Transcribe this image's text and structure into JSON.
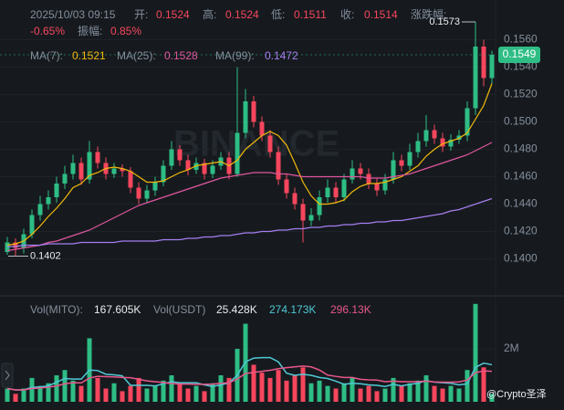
{
  "header": {
    "datetime": "2025/10/03 09:15",
    "open_label": "开:",
    "open": "0.1524",
    "high_label": "高:",
    "high": "0.1524",
    "low_label": "低:",
    "low": "0.1511",
    "close_label": "收:",
    "close": "0.1514",
    "change_label": "涨跌幅:",
    "change": "-0.65%",
    "amplitude_label": "振幅:",
    "amplitude": "0.85%"
  },
  "watermark": "BINANCE",
  "credit": "@Crypto圣泽",
  "chart_data": [
    {
      "type": "candlestick",
      "up_color": "#2ebd85",
      "down_color": "#f6465d",
      "grid": true,
      "ylim": [
        0.1375,
        0.1589
      ],
      "yticks": [
        {
          "value": 0.14,
          "label": "0.1400"
        },
        {
          "value": 0.142,
          "label": "0.1420"
        },
        {
          "value": 0.144,
          "label": "0.1440"
        },
        {
          "value": 0.146,
          "label": "0.1460"
        },
        {
          "value": 0.148,
          "label": "0.1480"
        },
        {
          "value": 0.15,
          "label": "0.1500"
        },
        {
          "value": 0.152,
          "label": "0.1520"
        },
        {
          "value": 0.154,
          "label": "0.1540"
        },
        {
          "value": 0.156,
          "label": "0.1560"
        }
      ],
      "open": [
        0.1405,
        0.1412,
        0.1408,
        0.1418,
        0.1432,
        0.144,
        0.1445,
        0.1455,
        0.1462,
        0.147,
        0.1458,
        0.1478,
        0.147,
        0.1462,
        0.1466,
        0.1464,
        0.1452,
        0.1444,
        0.145,
        0.1456,
        0.1468,
        0.148,
        0.1472,
        0.1465,
        0.147,
        0.1462,
        0.1468,
        0.1474,
        0.1462,
        0.1492,
        0.1515,
        0.15,
        0.149,
        0.1478,
        0.1458,
        0.1448,
        0.144,
        0.1428,
        0.1432,
        0.1445,
        0.1452,
        0.1445,
        0.1458,
        0.1466,
        0.1462,
        0.1455,
        0.145,
        0.1458,
        0.1472,
        0.1468,
        0.1478,
        0.1486,
        0.1494,
        0.1488,
        0.1482,
        0.1487,
        0.149,
        0.151,
        0.1555,
        0.1532
      ],
      "high": [
        0.1416,
        0.1415,
        0.1422,
        0.1436,
        0.1446,
        0.145,
        0.146,
        0.1468,
        0.1476,
        0.1474,
        0.1486,
        0.1482,
        0.1474,
        0.147,
        0.1469,
        0.1467,
        0.1456,
        0.1454,
        0.146,
        0.1472,
        0.1486,
        0.1483,
        0.1476,
        0.1474,
        0.1473,
        0.1472,
        0.1478,
        0.1478,
        0.154,
        0.1524,
        0.1519,
        0.1504,
        0.1494,
        0.1482,
        0.1462,
        0.1452,
        0.1444,
        0.1437,
        0.145,
        0.1458,
        0.1456,
        0.1462,
        0.1472,
        0.147,
        0.1466,
        0.1459,
        0.1462,
        0.1478,
        0.1476,
        0.1484,
        0.1492,
        0.1505,
        0.1498,
        0.1492,
        0.1491,
        0.1494,
        0.1515,
        0.1573,
        0.156,
        0.1552
      ],
      "low": [
        0.1403,
        0.1402,
        0.1404,
        0.1415,
        0.1428,
        0.1436,
        0.1441,
        0.1451,
        0.1458,
        0.1454,
        0.1455,
        0.1466,
        0.1458,
        0.1459,
        0.146,
        0.1448,
        0.144,
        0.1441,
        0.1446,
        0.1453,
        0.1465,
        0.1468,
        0.1461,
        0.1462,
        0.1458,
        0.1459,
        0.1465,
        0.1458,
        0.146,
        0.1488,
        0.1496,
        0.1486,
        0.1474,
        0.1454,
        0.1444,
        0.1436,
        0.1412,
        0.1424,
        0.1428,
        0.1441,
        0.1441,
        0.1442,
        0.1455,
        0.1458,
        0.1451,
        0.1446,
        0.1447,
        0.1455,
        0.1464,
        0.1465,
        0.1474,
        0.1482,
        0.1484,
        0.1478,
        0.1479,
        0.1484,
        0.1486,
        0.1505,
        0.1526,
        0.1528
      ],
      "close": [
        0.1412,
        0.1408,
        0.1418,
        0.1432,
        0.144,
        0.1445,
        0.1455,
        0.1462,
        0.147,
        0.1458,
        0.1478,
        0.147,
        0.1462,
        0.1466,
        0.1464,
        0.1452,
        0.1444,
        0.145,
        0.1456,
        0.1468,
        0.148,
        0.1472,
        0.1465,
        0.147,
        0.1462,
        0.1468,
        0.1474,
        0.1462,
        0.1492,
        0.1515,
        0.15,
        0.149,
        0.1478,
        0.1458,
        0.1448,
        0.144,
        0.1428,
        0.1432,
        0.1445,
        0.1452,
        0.1445,
        0.1458,
        0.1466,
        0.1462,
        0.1455,
        0.145,
        0.1458,
        0.1472,
        0.1468,
        0.1478,
        0.1486,
        0.1494,
        0.1488,
        0.1482,
        0.1487,
        0.149,
        0.151,
        0.1555,
        0.1532,
        0.1549
      ],
      "series": [
        {
          "name": "MA(7):",
          "color": "#f0b90b",
          "legend_value": "0.1521",
          "values": [
            0.141,
            0.1411,
            0.1413,
            0.1418,
            0.1424,
            0.1431,
            0.1437,
            0.1444,
            0.1452,
            0.1455,
            0.1461,
            0.1463,
            0.1466,
            0.1467,
            0.1466,
            0.1464,
            0.146,
            0.1456,
            0.1456,
            0.1457,
            0.146,
            0.1463,
            0.1465,
            0.1468,
            0.1469,
            0.147,
            0.1471,
            0.1468,
            0.1472,
            0.148,
            0.1485,
            0.149,
            0.1493,
            0.149,
            0.1483,
            0.147,
            0.1456,
            0.1446,
            0.144,
            0.144,
            0.1441,
            0.1443,
            0.1449,
            0.1453,
            0.1455,
            0.1455,
            0.1456,
            0.1458,
            0.146,
            0.1464,
            0.1468,
            0.1475,
            0.148,
            0.1484,
            0.1486,
            0.1488,
            0.1492,
            0.1502,
            0.1512,
            0.1528
          ]
        },
        {
          "name": "MA(25):",
          "color": "#e0569f",
          "legend_value": "0.1528",
          "values": [
            0.1406,
            0.1407,
            0.1408,
            0.1409,
            0.141,
            0.1412,
            0.1413,
            0.1415,
            0.1417,
            0.1419,
            0.1421,
            0.1424,
            0.1427,
            0.143,
            0.1433,
            0.1436,
            0.1439,
            0.1441,
            0.1443,
            0.1445,
            0.1447,
            0.1449,
            0.1451,
            0.1453,
            0.1455,
            0.1457,
            0.1459,
            0.146,
            0.1461,
            0.1462,
            0.1463,
            0.1463,
            0.1463,
            0.1462,
            0.1462,
            0.1461,
            0.146,
            0.146,
            0.146,
            0.146,
            0.146,
            0.146,
            0.146,
            0.146,
            0.1459,
            0.1459,
            0.1459,
            0.146,
            0.1461,
            0.1462,
            0.1464,
            0.1466,
            0.1468,
            0.147,
            0.1472,
            0.1474,
            0.1476,
            0.1479,
            0.1482,
            0.1485
          ]
        },
        {
          "name": "MA(99):",
          "color": "#a57ff0",
          "legend_value": "0.1472",
          "values": [
            0.1409,
            0.1409,
            0.141,
            0.141,
            0.141,
            0.1411,
            0.1411,
            0.1411,
            0.1411,
            0.1412,
            0.1412,
            0.1412,
            0.1412,
            0.1412,
            0.1413,
            0.1413,
            0.1413,
            0.1413,
            0.1413,
            0.1414,
            0.1414,
            0.1414,
            0.1415,
            0.1415,
            0.1416,
            0.1416,
            0.1417,
            0.1417,
            0.1418,
            0.1419,
            0.1419,
            0.142,
            0.142,
            0.1421,
            0.1421,
            0.1422,
            0.1422,
            0.1423,
            0.1423,
            0.1424,
            0.1424,
            0.1425,
            0.1425,
            0.1426,
            0.1426,
            0.1427,
            0.1427,
            0.1428,
            0.1428,
            0.1429,
            0.143,
            0.1431,
            0.1432,
            0.1433,
            0.1435,
            0.1436,
            0.1438,
            0.144,
            0.1442,
            0.1444
          ]
        }
      ],
      "annotations": [
        0.1573,
        0.1402
      ],
      "last_price": 0.1549
    },
    {
      "type": "bar",
      "legend": [
        {
          "label": "Vol(MITO):",
          "value": "167.605K"
        },
        {
          "label": "Vol(USDT)",
          "value": "25.428K"
        }
      ],
      "ylim": [
        0,
        3900000
      ],
      "yticks": [
        {
          "value": 2000000,
          "label": "2M"
        }
      ],
      "values": [
        500000,
        300000,
        500000,
        900000,
        600000,
        700000,
        1000000,
        1200000,
        800000,
        600000,
        2400000,
        900000,
        500000,
        700000,
        400000,
        600000,
        900000,
        500000,
        600000,
        800000,
        1000000,
        700000,
        500000,
        600000,
        400000,
        700000,
        1000000,
        900000,
        2000000,
        2950000,
        1400000,
        1100000,
        900000,
        1200000,
        800000,
        1000000,
        1300000,
        700000,
        800000,
        600000,
        500000,
        700000,
        900000,
        500000,
        600000,
        400000,
        500000,
        900000,
        600000,
        700000,
        800000,
        1000000,
        600000,
        500000,
        600000,
        500000,
        1200000,
        3700000,
        1300000,
        300000
      ],
      "series": [
        {
          "color": "#4fc9d6",
          "legend_value": "274.173K",
          "values": [
            500000,
            450000,
            450000,
            550000,
            560000,
            600000,
            740000,
            880000,
            860000,
            860000,
            1200000,
            1180000,
            1040000,
            1020000,
            980000,
            620000,
            620000,
            620000,
            600000,
            680000,
            760000,
            720000,
            720000,
            720000,
            640000,
            580000,
            640000,
            720000,
            1000000,
            1510000,
            1650000,
            1670000,
            1670000,
            1510000,
            1080000,
            1000000,
            1040000,
            1000000,
            920000,
            880000,
            780000,
            660000,
            700000,
            680000,
            640000,
            620000,
            580000,
            660000,
            600000,
            660000,
            700000,
            800000,
            740000,
            720000,
            700000,
            640000,
            680000,
            1300000,
            1460000,
            1400000
          ]
        },
        {
          "color": "#e8578a",
          "legend_value": "296.13K",
          "values": [
            500000,
            450000,
            450000,
            500000,
            520000,
            550000,
            600000,
            680000,
            720000,
            710000,
            900000,
            960000,
            950000,
            940000,
            920000,
            910000,
            850000,
            790000,
            760000,
            730000,
            690000,
            670000,
            670000,
            660000,
            660000,
            670000,
            700000,
            720000,
            860000,
            1070000,
            1110000,
            1150000,
            1190000,
            1250000,
            1290000,
            1320000,
            1350000,
            1320000,
            1200000,
            1010000,
            960000,
            920000,
            920000,
            850000,
            830000,
            820000,
            760000,
            780000,
            760000,
            760000,
            760000,
            780000,
            750000,
            740000,
            740000,
            750000,
            820000,
            1100000,
            1170000,
            1150000
          ]
        }
      ]
    }
  ]
}
